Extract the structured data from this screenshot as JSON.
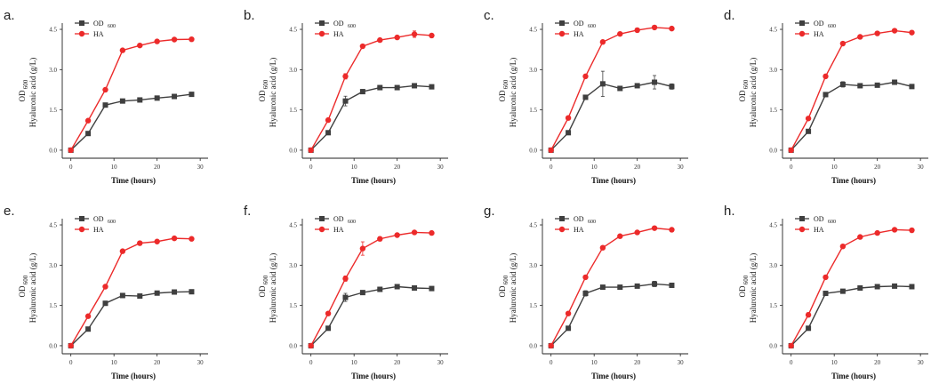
{
  "figure": {
    "background": "#ffffff"
  },
  "colors": {
    "od": "#3f3f3f",
    "ha": "#ec2a2a",
    "axis": "#222222"
  },
  "chart_data": [
    {
      "panel": "a.",
      "type": "line",
      "xlabel": "Time (hours)",
      "ylabel_od": "OD",
      "ylabel_od_sub": "600",
      "ylabel_ha": "Hyaluronic acid (g/L)",
      "xlim": [
        -2,
        31
      ],
      "ylim": [
        -0.3,
        4.6
      ],
      "xticks": [
        0,
        10,
        20,
        30
      ],
      "yticks": [
        0.0,
        1.5,
        3.0,
        4.5
      ],
      "xtick_labels": [
        "0",
        "10",
        "20",
        "30"
      ],
      "ytick_labels": [
        "0.0",
        "1.5",
        "3.0",
        "4.5"
      ],
      "legend": {
        "od_label": "OD",
        "od_sub": "600",
        "ha_label": "HA"
      },
      "x": [
        0,
        4,
        8,
        12,
        16,
        20,
        24,
        28
      ],
      "series": [
        {
          "name": "OD600",
          "values": [
            0.0,
            0.62,
            1.68,
            1.83,
            1.87,
            1.94,
            2.0,
            2.08
          ],
          "errors": [
            0,
            0.03,
            0.05,
            0.04,
            0.04,
            0.05,
            0.04,
            0.05
          ]
        },
        {
          "name": "HA",
          "values": [
            0.0,
            1.1,
            2.25,
            3.72,
            3.9,
            4.05,
            4.12,
            4.13
          ],
          "errors": [
            0,
            0.04,
            0.05,
            0.05,
            0.05,
            0.05,
            0.06,
            0.05
          ]
        }
      ]
    },
    {
      "panel": "b.",
      "type": "line",
      "xlabel": "Time (hours)",
      "ylabel_od": "OD",
      "ylabel_od_sub": "600",
      "ylabel_ha": "Hyaluronic acid (g/L)",
      "xlim": [
        -2,
        31
      ],
      "ylim": [
        -0.3,
        4.6
      ],
      "xticks": [
        0,
        10,
        20,
        30
      ],
      "yticks": [
        0.0,
        1.5,
        3.0,
        4.5
      ],
      "xtick_labels": [
        "0",
        "10",
        "20",
        "30"
      ],
      "ytick_labels": [
        "0.0",
        "1.5",
        "3.0",
        "4.5"
      ],
      "legend": {
        "od_label": "OD",
        "od_sub": "600",
        "ha_label": "HA"
      },
      "x": [
        0,
        4,
        8,
        12,
        16,
        20,
        24,
        28
      ],
      "series": [
        {
          "name": "OD600",
          "values": [
            0.0,
            0.65,
            1.83,
            2.18,
            2.33,
            2.33,
            2.4,
            2.36
          ],
          "errors": [
            0,
            0.04,
            0.18,
            0.08,
            0.08,
            0.06,
            0.05,
            0.05
          ]
        },
        {
          "name": "HA",
          "values": [
            0.0,
            1.12,
            2.75,
            3.87,
            4.1,
            4.2,
            4.32,
            4.27
          ],
          "errors": [
            0,
            0.05,
            0.1,
            0.05,
            0.05,
            0.05,
            0.12,
            0.05
          ]
        }
      ]
    },
    {
      "panel": "c.",
      "type": "line",
      "xlabel": "Time (hours)",
      "ylabel_od": "OD",
      "ylabel_od_sub": "600",
      "ylabel_ha": "Hyaluronic acid (g/L)",
      "xlim": [
        -2,
        31
      ],
      "ylim": [
        -0.3,
        4.6
      ],
      "xticks": [
        0,
        10,
        20,
        30
      ],
      "yticks": [
        0.0,
        1.5,
        3.0,
        4.5
      ],
      "xtick_labels": [
        "0",
        "10",
        "20",
        "30"
      ],
      "ytick_labels": [
        "0.0",
        "1.5",
        "3.0",
        "4.5"
      ],
      "legend": {
        "od_label": "OD",
        "od_sub": "600",
        "ha_label": "HA"
      },
      "x": [
        0,
        4,
        8,
        12,
        16,
        20,
        24,
        28
      ],
      "series": [
        {
          "name": "OD600",
          "values": [
            0.0,
            0.65,
            1.97,
            2.47,
            2.3,
            2.4,
            2.53,
            2.37
          ],
          "errors": [
            0,
            0.04,
            0.06,
            0.47,
            0.05,
            0.05,
            0.25,
            0.1
          ]
        },
        {
          "name": "HA",
          "values": [
            0.0,
            1.2,
            2.75,
            4.03,
            4.33,
            4.47,
            4.57,
            4.53
          ],
          "errors": [
            0,
            0.05,
            0.05,
            0.05,
            0.05,
            0.05,
            0.05,
            0.05
          ]
        }
      ]
    },
    {
      "panel": "d.",
      "type": "line",
      "xlabel": "Time (hours)",
      "ylabel_od": "OD",
      "ylabel_od_sub": "600",
      "ylabel_ha": "Hyaluronic acid (g/L)",
      "xlim": [
        -2,
        31
      ],
      "ylim": [
        -0.3,
        4.6
      ],
      "xticks": [
        0,
        10,
        20,
        30
      ],
      "yticks": [
        0.0,
        1.5,
        3.0,
        4.5
      ],
      "xtick_labels": [
        "0",
        "10",
        "20",
        "30"
      ],
      "ytick_labels": [
        "0.0",
        "1.5",
        "3.0",
        "4.5"
      ],
      "legend": {
        "od_label": "OD",
        "od_sub": "600",
        "ha_label": "HA"
      },
      "x": [
        0,
        4,
        8,
        12,
        16,
        20,
        24,
        28
      ],
      "series": [
        {
          "name": "OD600",
          "values": [
            0.0,
            0.7,
            2.07,
            2.45,
            2.4,
            2.42,
            2.53,
            2.37
          ],
          "errors": [
            0,
            0.04,
            0.08,
            0.1,
            0.05,
            0.06,
            0.05,
            0.05
          ]
        },
        {
          "name": "HA",
          "values": [
            0.0,
            1.18,
            2.75,
            3.97,
            4.22,
            4.35,
            4.45,
            4.38
          ],
          "errors": [
            0,
            0.05,
            0.05,
            0.05,
            0.05,
            0.05,
            0.05,
            0.05
          ]
        }
      ]
    },
    {
      "panel": "e.",
      "type": "line",
      "xlabel": "Time (hours)",
      "ylabel_od": "OD",
      "ylabel_od_sub": "600",
      "ylabel_ha": "Hyaluronic acid (g/L)",
      "xlim": [
        -2,
        31
      ],
      "ylim": [
        -0.3,
        4.6
      ],
      "xticks": [
        0,
        10,
        20,
        30
      ],
      "yticks": [
        0.0,
        1.5,
        3.0,
        4.5
      ],
      "xtick_labels": [
        "0",
        "10",
        "20",
        "30"
      ],
      "ytick_labels": [
        "0.0",
        "1.5",
        "3.0",
        "4.5"
      ],
      "legend": {
        "od_label": "OD",
        "od_sub": "600",
        "ha_label": "HA"
      },
      "x": [
        0,
        4,
        8,
        12,
        16,
        20,
        24,
        28
      ],
      "series": [
        {
          "name": "OD600",
          "values": [
            0.0,
            0.62,
            1.58,
            1.87,
            1.85,
            1.96,
            2.0,
            2.01
          ],
          "errors": [
            0,
            0.04,
            0.08,
            0.05,
            0.05,
            0.04,
            0.05,
            0.05
          ]
        },
        {
          "name": "HA",
          "values": [
            0.0,
            1.1,
            2.2,
            3.52,
            3.82,
            3.88,
            4.0,
            3.98
          ],
          "errors": [
            0,
            0.05,
            0.05,
            0.05,
            0.05,
            0.05,
            0.05,
            0.05
          ]
        }
      ]
    },
    {
      "panel": "f.",
      "type": "line",
      "xlabel": "Time (hours)",
      "ylabel_od": "OD",
      "ylabel_od_sub": "600",
      "ylabel_ha": "Hyaluronic acid (g/L)",
      "xlim": [
        -2,
        31
      ],
      "ylim": [
        -0.3,
        4.6
      ],
      "xticks": [
        0,
        10,
        20,
        30
      ],
      "yticks": [
        0.0,
        1.5,
        3.0,
        4.5
      ],
      "xtick_labels": [
        "0",
        "10",
        "20",
        "30"
      ],
      "ytick_labels": [
        "0.0",
        "1.5",
        "3.0",
        "4.5"
      ],
      "legend": {
        "od_label": "OD",
        "od_sub": "600",
        "ha_label": "HA"
      },
      "x": [
        0,
        4,
        8,
        12,
        16,
        20,
        24,
        28
      ],
      "series": [
        {
          "name": "OD600",
          "values": [
            0.0,
            0.65,
            1.8,
            1.98,
            2.1,
            2.2,
            2.15,
            2.13
          ],
          "errors": [
            0,
            0.04,
            0.15,
            0.05,
            0.05,
            0.05,
            0.05,
            0.05
          ]
        },
        {
          "name": "HA",
          "values": [
            0.0,
            1.2,
            2.5,
            3.62,
            3.98,
            4.12,
            4.22,
            4.2
          ],
          "errors": [
            0,
            0.05,
            0.1,
            0.25,
            0.08,
            0.05,
            0.05,
            0.05
          ]
        }
      ]
    },
    {
      "panel": "g.",
      "type": "line",
      "xlabel": "Time (hours)",
      "ylabel_od": "OD",
      "ylabel_od_sub": "600",
      "ylabel_ha": "Hyaluronic acid (g/L)",
      "xlim": [
        -2,
        31
      ],
      "ylim": [
        -0.3,
        4.6
      ],
      "xticks": [
        0,
        10,
        20,
        30
      ],
      "yticks": [
        0.0,
        1.5,
        3.0,
        4.5
      ],
      "xtick_labels": [
        "0",
        "10",
        "20",
        "30"
      ],
      "ytick_labels": [
        "0.0",
        "1.5",
        "3.0",
        "4.5"
      ],
      "legend": {
        "od_label": "OD",
        "od_sub": "600",
        "ha_label": "HA"
      },
      "x": [
        0,
        4,
        8,
        12,
        16,
        20,
        24,
        28
      ],
      "series": [
        {
          "name": "OD600",
          "values": [
            0.0,
            0.65,
            1.95,
            2.18,
            2.18,
            2.22,
            2.3,
            2.25
          ],
          "errors": [
            0,
            0.04,
            0.1,
            0.05,
            0.05,
            0.05,
            0.1,
            0.06
          ]
        },
        {
          "name": "HA",
          "values": [
            0.0,
            1.2,
            2.55,
            3.65,
            4.08,
            4.22,
            4.38,
            4.32
          ],
          "errors": [
            0,
            0.05,
            0.05,
            0.05,
            0.05,
            0.05,
            0.05,
            0.05
          ]
        }
      ]
    },
    {
      "panel": "h.",
      "type": "line",
      "xlabel": "Time (hours)",
      "ylabel_od": "OD",
      "ylabel_od_sub": "600",
      "ylabel_ha": "Hyaluronic acid (g/L)",
      "xlim": [
        -2,
        31
      ],
      "ylim": [
        -0.3,
        4.6
      ],
      "xticks": [
        0,
        10,
        20,
        30
      ],
      "yticks": [
        0.0,
        1.5,
        3.0,
        4.5
      ],
      "xtick_labels": [
        "0",
        "10",
        "20",
        "30"
      ],
      "ytick_labels": [
        "0.0",
        "1.5",
        "3.0",
        "4.5"
      ],
      "legend": {
        "od_label": "OD",
        "od_sub": "600",
        "ha_label": "HA"
      },
      "x": [
        0,
        4,
        8,
        12,
        16,
        20,
        24,
        28
      ],
      "series": [
        {
          "name": "OD600",
          "values": [
            0.0,
            0.65,
            1.95,
            2.03,
            2.15,
            2.2,
            2.22,
            2.2
          ],
          "errors": [
            0,
            0.04,
            0.05,
            0.05,
            0.05,
            0.05,
            0.05,
            0.05
          ]
        },
        {
          "name": "HA",
          "values": [
            0.0,
            1.15,
            2.55,
            3.7,
            4.05,
            4.2,
            4.32,
            4.3
          ],
          "errors": [
            0,
            0.08,
            0.05,
            0.05,
            0.05,
            0.05,
            0.05,
            0.05
          ]
        }
      ]
    }
  ]
}
